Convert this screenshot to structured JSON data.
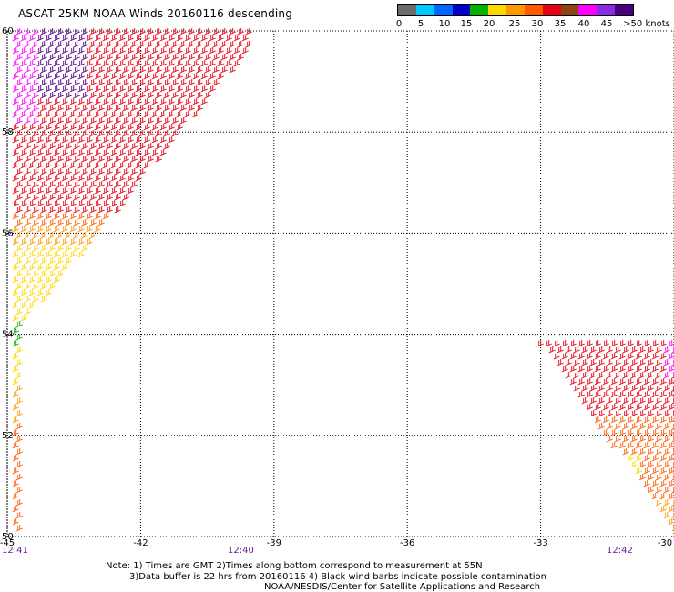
{
  "header": {
    "title": "ASCAT 25KM NOAA Winds 20160116 descending"
  },
  "legend": {
    "colors": [
      "#6b6b6b",
      "#00c8ff",
      "#0066ff",
      "#0000c8",
      "#00b400",
      "#ffd700",
      "#ff9900",
      "#ff5a00",
      "#e60012",
      "#8b4513",
      "#ff00ff",
      "#8a2be2",
      "#4b0082"
    ],
    "labels": [
      "0",
      "5",
      "10",
      "15",
      "20",
      "25",
      "30",
      "35",
      "40",
      "45",
      ">50 knots"
    ]
  },
  "map": {
    "lat_labels": [
      "60",
      "58",
      "56",
      "54",
      "52",
      "50"
    ],
    "lon_labels": [
      "-45",
      "-42",
      "-39",
      "-36",
      "-33",
      "-30"
    ],
    "grid": "dotted"
  },
  "times": [
    "12:41",
    "12:40",
    "12:42"
  ],
  "footer": {
    "line1": "Note: 1) Times are GMT 2)Times along bottom correspond to measurement at 55N",
    "line2": "3)Data buffer is 22 hrs from 20160116 4) Black wind barbs indicate possible contamination",
    "line3": "NOAA/NESDIS/Center for Satellite Applications and Research"
  }
}
